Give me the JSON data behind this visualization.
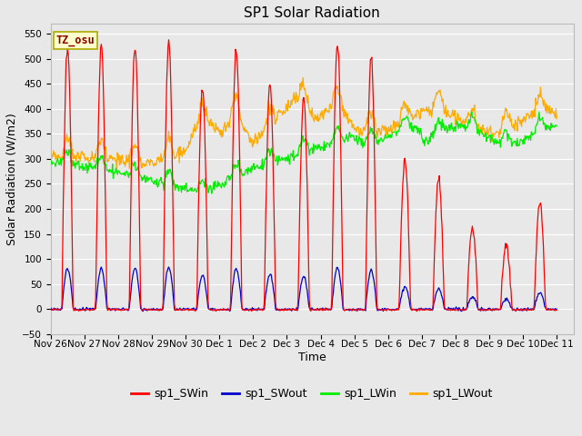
{
  "title": "SP1 Solar Radiation",
  "xlabel": "Time",
  "ylabel": "Solar Radiation (W/m2)",
  "ylim": [
    -50,
    570
  ],
  "yticks": [
    -50,
    0,
    50,
    100,
    150,
    200,
    250,
    300,
    350,
    400,
    450,
    500,
    550
  ],
  "bg_color": "#e8e8e8",
  "grid_color": "#ffffff",
  "series_colors": {
    "sp1_SWin": "#ff0000",
    "sp1_SWout": "#0000cc",
    "sp1_LWin": "#00ee00",
    "sp1_LWout": "#ffaa00"
  },
  "tz_label": "TZ_osu",
  "tz_label_color": "#8B0000",
  "tz_box_color": "#ffffcc",
  "tz_box_edge": "#aaaa00",
  "title_fontsize": 11,
  "axis_label_fontsize": 9,
  "tick_fontsize": 7.5,
  "legend_fontsize": 9,
  "xtick_labels": [
    "Nov 26",
    "Nov 27",
    "Nov 28",
    "Nov 29",
    "Nov 30",
    "Dec 1",
    "Dec 2",
    "Dec 3",
    "Dec 4",
    "Dec 5",
    "Dec 6",
    "Dec 7",
    "Dec 8",
    "Dec 9",
    "Dec 10",
    "Dec 11"
  ],
  "num_days": 15,
  "pts_per_day": 48
}
